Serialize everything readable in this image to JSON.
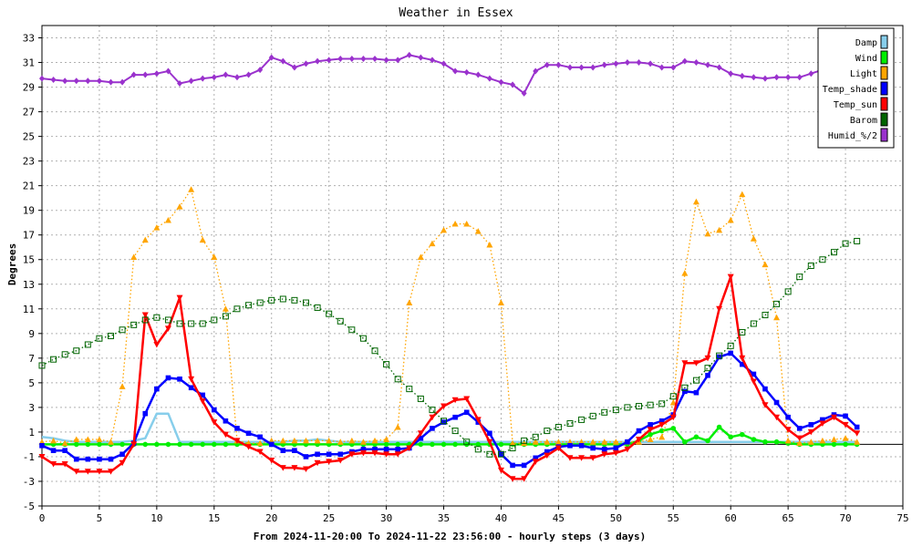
{
  "chart_data": {
    "type": "line",
    "title": "Weather in Essex",
    "xlabel": "From 2024-11-20:00 To 2024-11-22 23:56:00 - hourly steps (3 days)",
    "ylabel": "Degrees",
    "xlim": [
      0,
      75
    ],
    "ylim": [
      -5,
      34
    ],
    "x_ticks": [
      0,
      5,
      10,
      15,
      20,
      25,
      30,
      35,
      40,
      45,
      50,
      55,
      60,
      65,
      70,
      75
    ],
    "y_ticks": [
      -5,
      -3,
      -1,
      1,
      3,
      5,
      7,
      9,
      11,
      13,
      15,
      17,
      19,
      21,
      23,
      25,
      27,
      29,
      31,
      33
    ],
    "grid": true,
    "legend_position": "top-right",
    "series": [
      {
        "name": "Damp",
        "color": "#87ceeb",
        "marker": "none",
        "dash": "solid",
        "values": [
          0.6,
          0.5,
          0.3,
          0.2,
          0.2,
          0.2,
          0.2,
          0.2,
          0.3,
          0.5,
          2.5,
          2.5,
          0.2,
          0.2,
          0.2,
          0.2,
          0.2,
          0.2,
          0.2,
          0.2,
          0.2,
          0.2,
          0.3,
          0.3,
          0.4,
          0.3,
          0.2,
          0.2,
          0.2,
          0.2,
          0.2,
          0.2,
          0.2,
          0.2,
          0.2,
          0.2,
          0.2,
          0.2,
          0.2,
          0.2,
          0.2,
          0.2,
          0.2,
          0.2,
          0.2,
          0.2,
          0.2,
          0.2,
          0.2,
          0.2,
          0.2,
          0.2,
          0.2,
          0.2,
          0.2,
          0.2,
          0.2,
          0.2,
          0.2,
          0.2,
          0.2,
          0.2,
          0.2,
          0.2,
          0.2,
          0.2,
          0.2,
          0.2,
          0.2,
          0.2,
          0.2,
          0.2
        ]
      },
      {
        "name": "Wind",
        "color": "#00ee00",
        "marker": "dot",
        "dash": "solid",
        "values": [
          0,
          0,
          0,
          0,
          0,
          0,
          0,
          0,
          0,
          0,
          0,
          0,
          0,
          0,
          0,
          0,
          0,
          0,
          0,
          0,
          0,
          0,
          0,
          0,
          0,
          0,
          0,
          0,
          0,
          0,
          0,
          0,
          0,
          0,
          0,
          0,
          0,
          0,
          0,
          0,
          0,
          0,
          0,
          0,
          0,
          0,
          0,
          0,
          0,
          0,
          0,
          0,
          0.3,
          0.8,
          1.1,
          1.3,
          0.2,
          0.6,
          0.3,
          1.4,
          0.6,
          0.8,
          0.4,
          0.2,
          0.2,
          0.1,
          0,
          0,
          0,
          0,
          0,
          0
        ]
      },
      {
        "name": "Light",
        "color": "#ffa500",
        "marker": "triangle-up",
        "dash": "dotted",
        "values": [
          0.2,
          0.3,
          0.1,
          0.4,
          0.4,
          0.4,
          0.2,
          4.7,
          15.2,
          16.6,
          17.6,
          18.2,
          19.3,
          20.7,
          16.6,
          15.2,
          11,
          0.3,
          0.1,
          0.1,
          0.3,
          0.3,
          0.3,
          0.3,
          0.3,
          0.3,
          0.2,
          0.3,
          0.2,
          0.3,
          0.4,
          1.4,
          11.5,
          15.2,
          16.3,
          17.4,
          17.9,
          17.9,
          17.3,
          16.2,
          11.5,
          0.1,
          0.1,
          0.2,
          0.2,
          0.2,
          0.2,
          0.2,
          0.2,
          0.2,
          0.2,
          0.2,
          0.2,
          0.4,
          0.6,
          3.4,
          13.9,
          19.7,
          17.1,
          17.4,
          18.2,
          20.3,
          16.7,
          14.6,
          10.3,
          0.3,
          0.1,
          0.2,
          0.3,
          0.4,
          0.5,
          0.2
        ]
      },
      {
        "name": "Temp_shade",
        "color": "#0000ff",
        "marker": "square",
        "dash": "solid",
        "values": [
          -0.1,
          -0.5,
          -0.5,
          -1.2,
          -1.2,
          -1.2,
          -1.2,
          -0.8,
          0.1,
          2.5,
          4.5,
          5.4,
          5.3,
          4.6,
          4,
          2.8,
          1.9,
          1.3,
          0.9,
          0.6,
          0,
          -0.5,
          -0.5,
          -1,
          -0.8,
          -0.8,
          -0.8,
          -0.6,
          -0.4,
          -0.4,
          -0.4,
          -0.4,
          -0.3,
          0.5,
          1.3,
          1.8,
          2.2,
          2.6,
          1.8,
          0.9,
          -0.8,
          -1.7,
          -1.7,
          -1.1,
          -0.6,
          -0.2,
          -0.1,
          -0.1,
          -0.3,
          -0.4,
          -0.3,
          0.2,
          1.1,
          1.6,
          1.9,
          2.4,
          4.3,
          4.2,
          5.6,
          7.1,
          7.4,
          6.5,
          5.7,
          4.5,
          3.4,
          2.2,
          1.3,
          1.6,
          2,
          2.4,
          2.3,
          1.4
        ]
      },
      {
        "name": "Temp_sun",
        "color": "#ff0000",
        "marker": "triangle-down",
        "dash": "solid",
        "values": [
          -1,
          -1.6,
          -1.6,
          -2.2,
          -2.2,
          -2.2,
          -2.2,
          -1.5,
          0,
          10.5,
          8.1,
          9.4,
          11.9,
          5.3,
          3.5,
          1.8,
          0.8,
          0.3,
          -0.2,
          -0.6,
          -1.3,
          -1.9,
          -1.9,
          -2,
          -1.5,
          -1.4,
          -1.3,
          -0.8,
          -0.7,
          -0.7,
          -0.8,
          -0.8,
          -0.3,
          0.9,
          2.2,
          3.1,
          3.6,
          3.7,
          2,
          0.2,
          -2.1,
          -2.8,
          -2.8,
          -1.4,
          -0.9,
          -0.3,
          -1.1,
          -1.1,
          -1.1,
          -0.8,
          -0.7,
          -0.4,
          0.4,
          1.2,
          1.6,
          2.2,
          6.6,
          6.6,
          7,
          11,
          13.6,
          7,
          5.1,
          3.2,
          2.2,
          1.2,
          0.5,
          1,
          1.7,
          2.2,
          1.6,
          0.9
        ]
      },
      {
        "name": "Barom",
        "color": "#006400",
        "marker": "square-open",
        "dash": "dotted",
        "values": [
          6.4,
          6.9,
          7.3,
          7.6,
          8.1,
          8.6,
          8.8,
          9.3,
          9.7,
          10.1,
          10.3,
          10.1,
          9.8,
          9.8,
          9.8,
          10.1,
          10.4,
          11,
          11.3,
          11.5,
          11.7,
          11.8,
          11.7,
          11.5,
          11.1,
          10.6,
          10,
          9.3,
          8.6,
          7.6,
          6.5,
          5.3,
          4.5,
          3.7,
          2.8,
          1.9,
          1.1,
          0.2,
          -0.4,
          -0.8,
          -0.8,
          -0.3,
          0.3,
          0.6,
          1.1,
          1.4,
          1.7,
          2,
          2.3,
          2.6,
          2.8,
          3,
          3.1,
          3.2,
          3.3,
          3.9,
          4.6,
          5.2,
          6.2,
          7.2,
          8,
          9.1,
          9.8,
          10.5,
          11.4,
          12.4,
          13.6,
          14.5,
          15,
          15.6,
          16.3,
          16.5
        ]
      },
      {
        "name": "Humid_%/2",
        "color": "#9a32cd",
        "marker": "diamond",
        "dash": "solid",
        "values": [
          29.7,
          29.6,
          29.5,
          29.5,
          29.5,
          29.5,
          29.4,
          29.4,
          30,
          30,
          30.1,
          30.3,
          29.3,
          29.5,
          29.7,
          29.8,
          30,
          29.8,
          30,
          30.4,
          31.4,
          31.1,
          30.6,
          30.9,
          31.1,
          31.2,
          31.3,
          31.3,
          31.3,
          31.3,
          31.2,
          31.2,
          31.6,
          31.4,
          31.2,
          30.9,
          30.3,
          30.2,
          30,
          29.7,
          29.4,
          29.2,
          28.5,
          30.3,
          30.8,
          30.8,
          30.6,
          30.6,
          30.6,
          30.8,
          30.9,
          31,
          31,
          30.9,
          30.6,
          30.6,
          31.1,
          31,
          30.8,
          30.6,
          30.1,
          29.9,
          29.8,
          29.7,
          29.8,
          29.8,
          29.8,
          30.1,
          30.4,
          30.7,
          31.3,
          31.8
        ]
      }
    ]
  }
}
